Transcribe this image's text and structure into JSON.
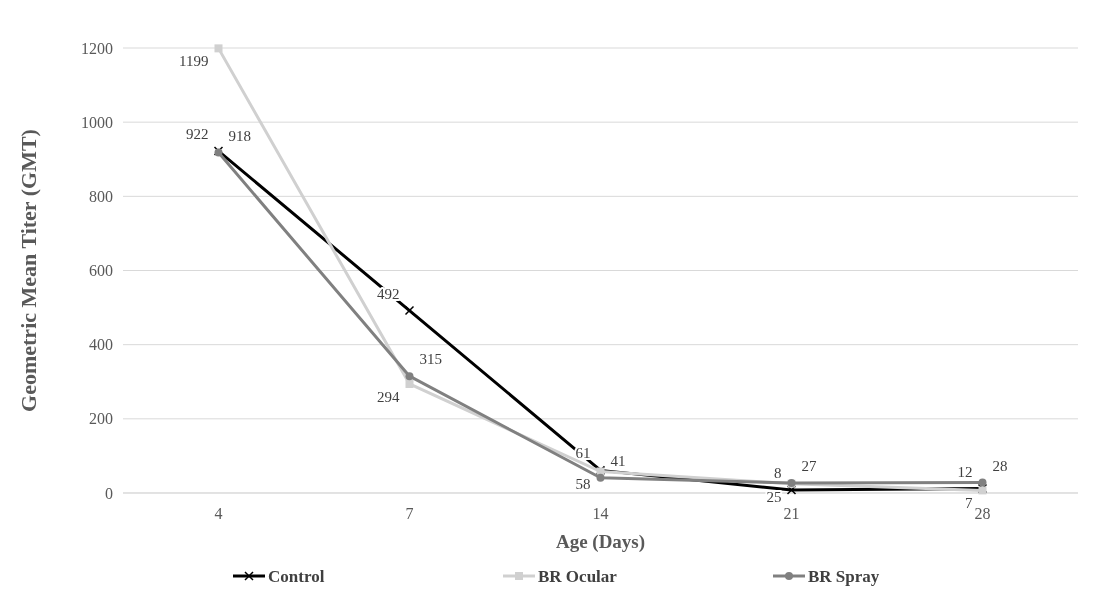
{
  "chart_data": {
    "type": "line",
    "xlabel": "Age (Days)",
    "ylabel": "Geometric Mean Titer (GMT)",
    "categories": [
      "4",
      "7",
      "14",
      "21",
      "28"
    ],
    "series": [
      {
        "name": "Control",
        "color": "#000000",
        "marker": "cross",
        "values": [
          922,
          492,
          61,
          8,
          12
        ]
      },
      {
        "name": "BR Ocular",
        "color": "#d0d0d0",
        "marker": "square",
        "values": [
          1199,
          294,
          58,
          25,
          7
        ]
      },
      {
        "name": "BR Spray",
        "color": "#808080",
        "marker": "circle",
        "values": [
          918,
          315,
          41,
          27,
          28
        ]
      }
    ],
    "ylim": [
      0,
      1200
    ],
    "yticks": [
      0,
      200,
      400,
      600,
      800,
      1000,
      1200
    ],
    "grid": "y",
    "legend": "bottom",
    "data_labels": true
  }
}
